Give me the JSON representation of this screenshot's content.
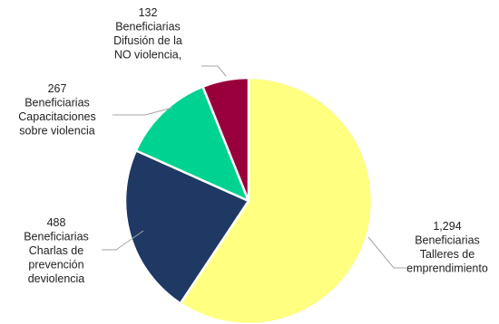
{
  "chart_data": {
    "type": "pie",
    "title": "",
    "slices": [
      {
        "value": 1294,
        "value_label": "1,294",
        "label_lines": [
          "Beneficiarias",
          "Talleres de",
          "emprendimiento"
        ],
        "color": "#FFFF80"
      },
      {
        "value": 488,
        "value_label": "488",
        "label_lines": [
          "Beneficiarias",
          "Charlas de",
          "prevención",
          "deviolencia"
        ],
        "color": "#1F3864"
      },
      {
        "value": 267,
        "value_label": "267",
        "label_lines": [
          "Beneficiarias",
          "Capacitaciones",
          "sobre violencia"
        ],
        "color": "#00D291"
      },
      {
        "value": 132,
        "value_label": "132",
        "label_lines": [
          "Beneficiarias",
          "Difusión de la",
          "NO violencia,"
        ],
        "color": "#99003B"
      }
    ],
    "legend": "none"
  }
}
